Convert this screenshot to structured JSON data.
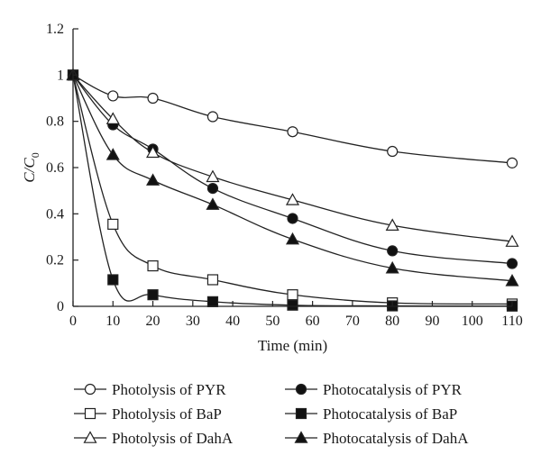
{
  "chart_data": {
    "type": "line",
    "xlabel": "Time (min)",
    "ylabel_main": "C/C",
    "ylabel_sub": "0",
    "xlim": [
      0,
      110
    ],
    "ylim": [
      0,
      1.2
    ],
    "xticks": [
      0,
      10,
      20,
      30,
      40,
      50,
      60,
      70,
      80,
      90,
      100,
      110
    ],
    "yticks": [
      0,
      0.2,
      0.4,
      0.6,
      0.8,
      1,
      1.2
    ],
    "ytick_labels": [
      "0",
      "0.2",
      "0.4",
      "0.6",
      "0.8",
      "1",
      "1.2"
    ],
    "grid": false,
    "legend_position": "bottom",
    "series": [
      {
        "name": "Photolysis of PYR",
        "marker": "circle-open",
        "x": [
          0,
          10,
          20,
          35,
          55,
          80,
          110
        ],
        "y": [
          1.0,
          0.91,
          0.9,
          0.82,
          0.755,
          0.67,
          0.62
        ]
      },
      {
        "name": "Photocatalysis of PYR",
        "marker": "circle-filled",
        "x": [
          0,
          10,
          20,
          35,
          55,
          80,
          110
        ],
        "y": [
          1.0,
          0.785,
          0.68,
          0.51,
          0.38,
          0.24,
          0.185
        ]
      },
      {
        "name": "Photolysis of BaP",
        "marker": "square-open",
        "x": [
          0,
          10,
          20,
          35,
          55,
          80,
          110
        ],
        "y": [
          1.0,
          0.355,
          0.175,
          0.115,
          0.05,
          0.015,
          0.01
        ]
      },
      {
        "name": "Photocatalysis of BaP",
        "marker": "square-filled",
        "x": [
          0,
          10,
          20,
          35,
          55,
          80,
          110
        ],
        "y": [
          1.0,
          0.115,
          0.05,
          0.02,
          0.005,
          0.002,
          0.001
        ]
      },
      {
        "name": "Photolysis of DahA",
        "marker": "triangle-open",
        "x": [
          0,
          10,
          20,
          35,
          55,
          80,
          110
        ],
        "y": [
          1.0,
          0.81,
          0.665,
          0.56,
          0.46,
          0.35,
          0.28
        ]
      },
      {
        "name": "Photocatalysis of DahA",
        "marker": "triangle-filled",
        "x": [
          0,
          10,
          20,
          35,
          55,
          80,
          110
        ],
        "y": [
          1.0,
          0.655,
          0.545,
          0.44,
          0.29,
          0.165,
          0.11
        ]
      }
    ]
  }
}
